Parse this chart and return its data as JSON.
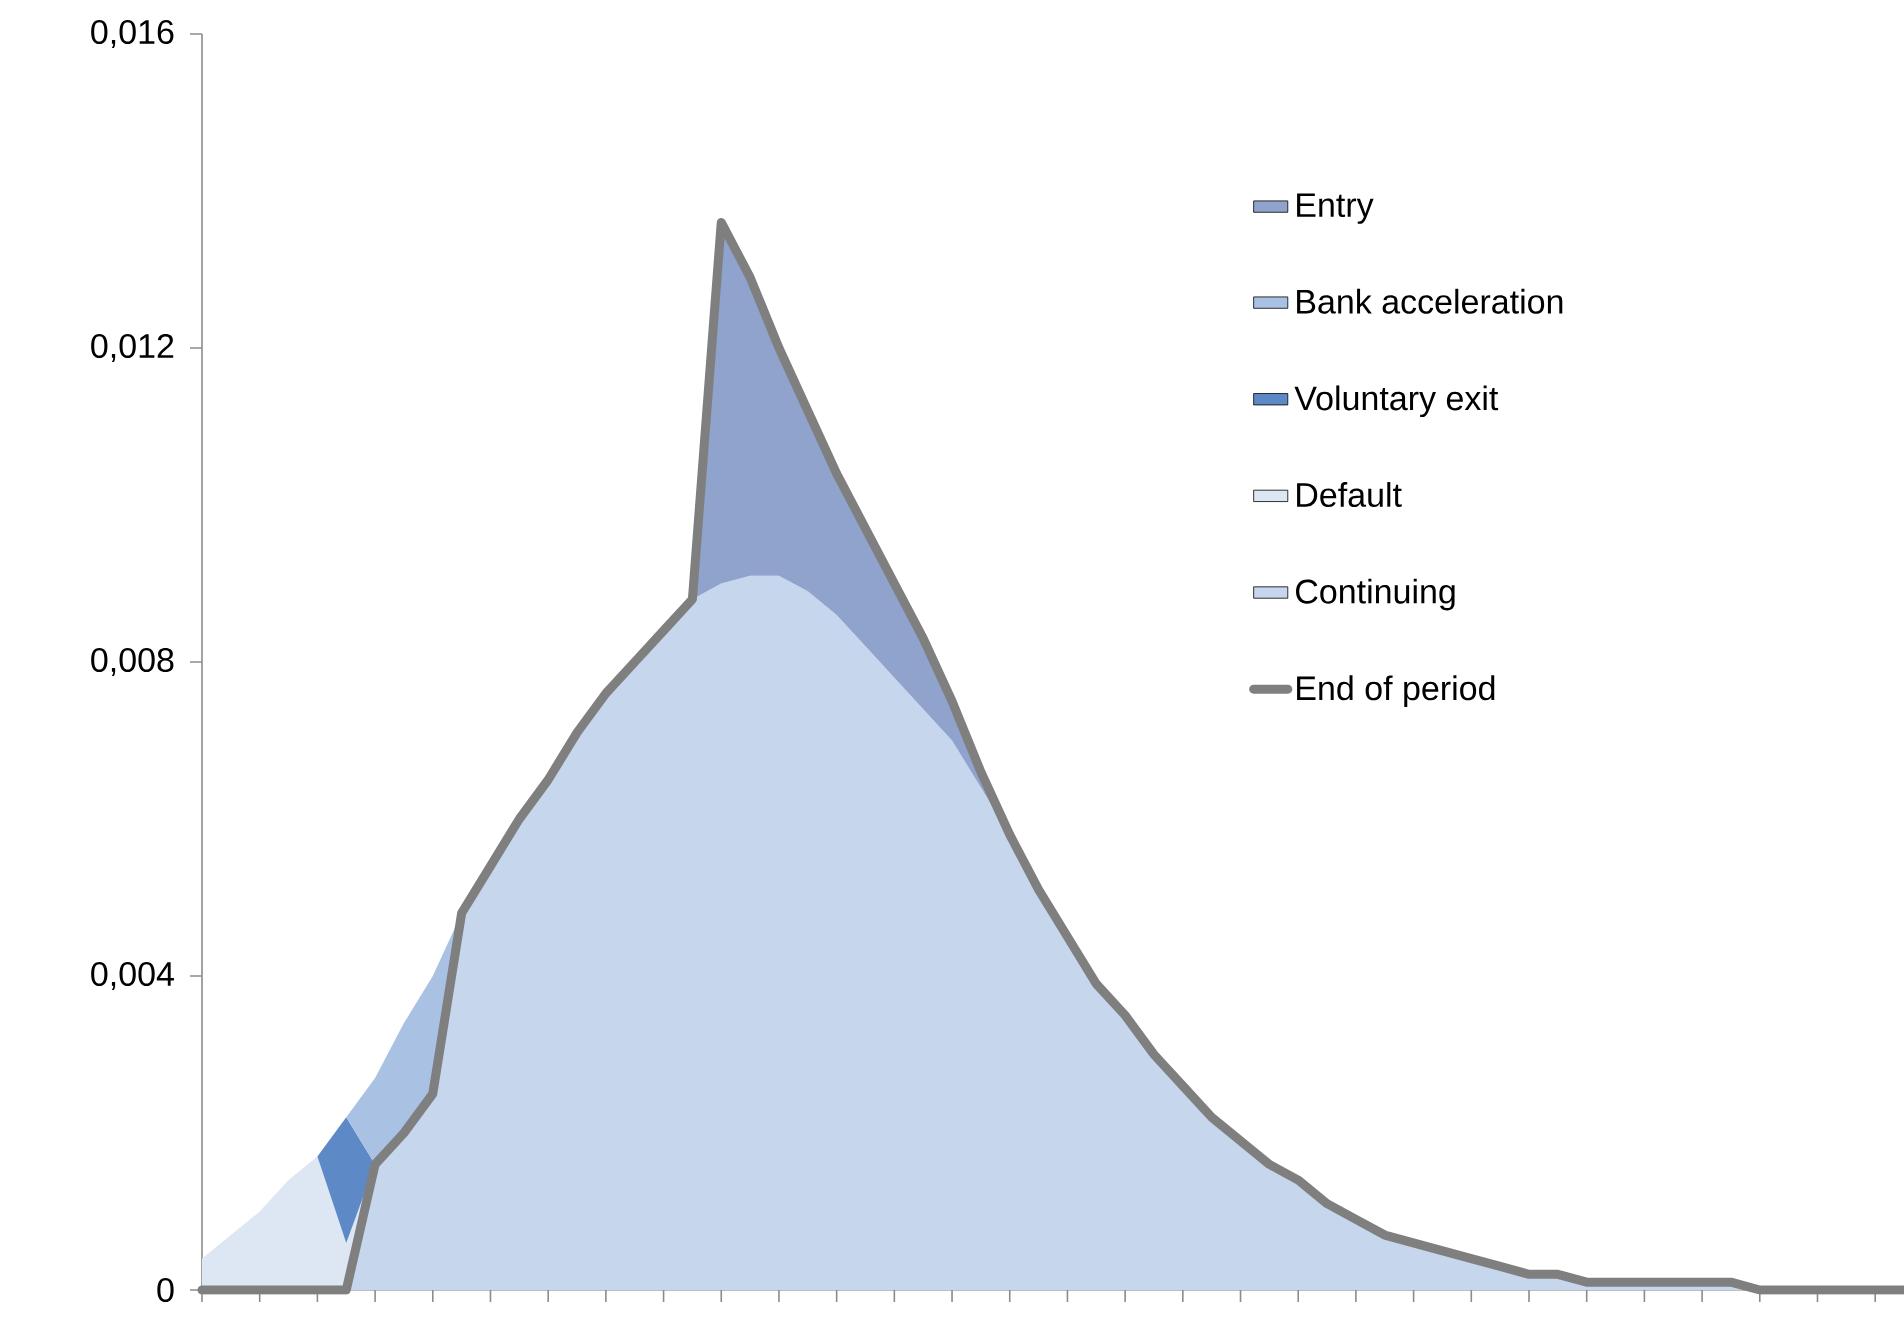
{
  "chart_data": {
    "type": "area",
    "stacked": true,
    "categories": [
      null,
      null,
      null,
      null,
      null,
      null,
      null,
      null,
      null,
      null,
      null,
      null,
      null,
      null,
      null,
      null,
      null,
      null,
      null,
      null,
      null,
      null,
      null,
      null,
      null,
      null,
      null,
      null,
      null,
      null,
      null,
      null,
      null,
      null,
      null,
      null,
      null,
      null,
      null,
      null,
      null,
      null,
      null,
      null,
      null,
      null,
      null,
      null,
      null,
      null,
      null,
      null,
      null,
      null,
      null,
      null,
      null,
      null,
      null,
      null
    ],
    "series": [
      {
        "name": "Continuing",
        "color": "#c6d6ec",
        "values": [
          0,
          0,
          0,
          0,
          0,
          0,
          0.0016,
          0.002,
          0.0025,
          0.0048,
          0.0054,
          0.006,
          0.0065,
          0.0071,
          0.0076,
          0.008,
          0.0084,
          0.0088,
          0.009,
          0.0091,
          0.0091,
          0.0089,
          0.0086,
          0.0082,
          0.0078,
          0.0074,
          0.007,
          0.0064,
          0.0058,
          0.0051,
          0.0045,
          0.0039,
          0.0035,
          0.003,
          0.0026,
          0.0022,
          0.0019,
          0.0016,
          0.0014,
          0.0011,
          0.0009,
          0.0007,
          0.0006,
          0.0005,
          0.0004,
          0.0003,
          0.0002,
          0.0002,
          0.0001,
          0.0001,
          0.0001,
          0.0001,
          0.0001,
          0.0001,
          0,
          0,
          0,
          0,
          0,
          0
        ]
      },
      {
        "name": "Default",
        "color": "#dde6f3",
        "values": [
          0.0004,
          0.0007,
          0.001,
          0.0014,
          0.0017,
          0.0006,
          0,
          null,
          null,
          null,
          null,
          null,
          null,
          null,
          null,
          null,
          null,
          null,
          null,
          null,
          null,
          null,
          null,
          null,
          null,
          null,
          null,
          null,
          null,
          null,
          null,
          null,
          null,
          null,
          null,
          null,
          null,
          null,
          null,
          null,
          null,
          null,
          null,
          null,
          null,
          null,
          null,
          null,
          null,
          null,
          null,
          null,
          null,
          null,
          null,
          null,
          null,
          null,
          null,
          null
        ]
      },
      {
        "name": "Voluntary exit",
        "color": "#5d8ac6",
        "values": [
          null,
          null,
          null,
          null,
          0,
          0.0016,
          0,
          null,
          null,
          null,
          null,
          null,
          null,
          null,
          null,
          null,
          null,
          null,
          null,
          null,
          null,
          null,
          null,
          null,
          null,
          null,
          null,
          null,
          null,
          null,
          null,
          null,
          null,
          null,
          null,
          null,
          null,
          null,
          null,
          null,
          null,
          null,
          null,
          null,
          null,
          null,
          null,
          null,
          null,
          null,
          null,
          null,
          null,
          null,
          null,
          null,
          null,
          null,
          null,
          null
        ]
      },
      {
        "name": "Bank acceleration",
        "color": "#a9c1e3",
        "values": [
          null,
          null,
          null,
          null,
          null,
          0,
          0.0011,
          0.0014,
          0.0015,
          0,
          null,
          null,
          null,
          null,
          null,
          null,
          null,
          null,
          null,
          null,
          null,
          null,
          null,
          null,
          null,
          null,
          null,
          null,
          null,
          null,
          null,
          null,
          null,
          null,
          null,
          null,
          null,
          null,
          null,
          null,
          null,
          null,
          null,
          null,
          null,
          null,
          null,
          null,
          null,
          null,
          null,
          null,
          null,
          null,
          null,
          null,
          null,
          null,
          null,
          null
        ]
      },
      {
        "name": "Entry",
        "color": "#8fa3cc",
        "values": [
          null,
          null,
          null,
          null,
          null,
          null,
          null,
          null,
          null,
          null,
          null,
          null,
          null,
          null,
          null,
          null,
          null,
          0,
          0.0046,
          0.0038,
          0.0029,
          0.0023,
          0.0018,
          0.0015,
          0.0012,
          0.0009,
          0.0005,
          0.0002,
          0,
          null,
          null,
          null,
          null,
          null,
          null,
          null,
          null,
          null,
          null,
          null,
          null,
          null,
          null,
          null,
          null,
          null,
          null,
          null,
          null,
          null,
          null,
          null,
          null,
          null,
          null,
          null,
          null,
          null,
          null,
          null
        ]
      },
      {
        "name": "End of period",
        "type": "line",
        "color": "#7f7f7f",
        "values": [
          0,
          0,
          0,
          0,
          0,
          0,
          0.0016,
          0.002,
          0.0025,
          0.0048,
          0.0054,
          0.006,
          0.0065,
          0.0071,
          0.0076,
          0.008,
          0.0084,
          0.0088,
          0.0136,
          0.0129,
          0.012,
          0.0112,
          0.0104,
          0.0097,
          0.009,
          0.0083,
          0.0075,
          0.0066,
          0.0058,
          0.0051,
          0.0045,
          0.0039,
          0.0035,
          0.003,
          0.0026,
          0.0022,
          0.0019,
          0.0016,
          0.0014,
          0.0011,
          0.0009,
          0.0007,
          0.0006,
          0.0005,
          0.0004,
          0.0003,
          0.0002,
          0.0002,
          0.0001,
          0.0001,
          0.0001,
          0.0001,
          0.0001,
          0.0001,
          0,
          0,
          0,
          0,
          0,
          0
        ]
      }
    ],
    "ylim": [
      0,
      0.016
    ],
    "yticks": [
      0,
      {
        "value": 0.004,
        "label": "0,004"
      },
      {
        "value": 0.008,
        "label": "0,008"
      },
      {
        "value": 0.012,
        "label": "0,012"
      },
      {
        "value": 0.016,
        "label": "0,016"
      }
    ],
    "tick_labels": "y",
    "legend": "top right",
    "marker": "none",
    "line_style": "solid"
  }
}
